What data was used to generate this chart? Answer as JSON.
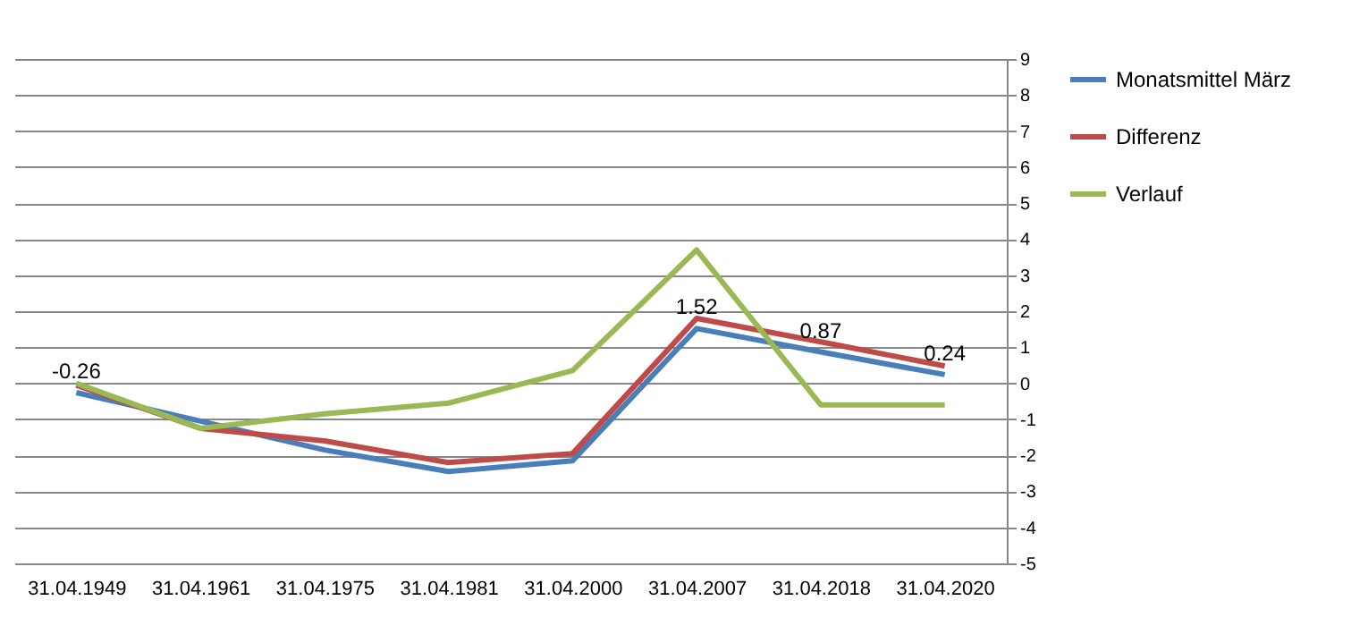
{
  "chart_data": {
    "type": "line",
    "categories": [
      "31.04.1949",
      "31.04.1961",
      "31.04.1975",
      "31.04.1981",
      "31.04.2000",
      "31.04.2007",
      "31.04.2018",
      "31.04.2020"
    ],
    "series": [
      {
        "name": "Monatsmittel März",
        "color": "#4a7ebb",
        "values": [
          -0.26,
          -1.05,
          -1.85,
          -2.45,
          -2.15,
          1.52,
          0.87,
          0.24
        ],
        "value_labels": [
          "-0.26",
          null,
          null,
          null,
          null,
          "1.52",
          "0.87",
          "0.24"
        ]
      },
      {
        "name": "Differenz",
        "color": "#be4b48",
        "values": [
          -0.05,
          -1.25,
          -1.6,
          -2.2,
          -1.95,
          1.8,
          1.15,
          0.48
        ]
      },
      {
        "name": "Verlauf",
        "color": "#98b954",
        "values": [
          0,
          -1.25,
          -0.85,
          -0.55,
          0.35,
          3.7,
          -0.6,
          -0.6
        ]
      }
    ],
    "ylim": [
      -5,
      9
    ],
    "yticks": [
      -5,
      -4,
      -3,
      -2,
      -1,
      0,
      1,
      2,
      3,
      4,
      5,
      6,
      7,
      8,
      9
    ],
    "grid": "y",
    "legend": "right"
  }
}
